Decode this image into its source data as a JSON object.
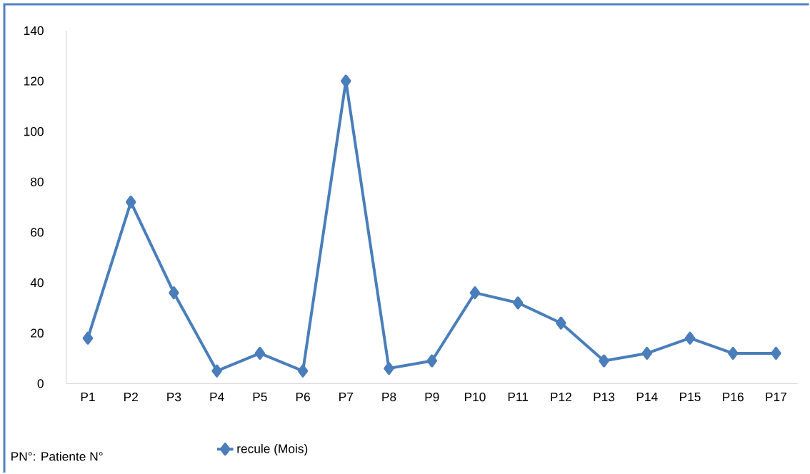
{
  "chart_data": {
    "type": "line",
    "categories": [
      "P1",
      "P2",
      "P3",
      "P4",
      "P5",
      "P6",
      "P7",
      "P8",
      "P9",
      "P10",
      "P11",
      "P12",
      "P13",
      "P14",
      "P15",
      "P16",
      "P17"
    ],
    "series": [
      {
        "name": "recule (Mois)",
        "color": "#4a7ebb",
        "values": [
          18,
          72,
          36,
          5,
          12,
          5,
          120,
          6,
          9,
          36,
          32,
          24,
          9,
          12,
          18,
          12,
          12
        ]
      }
    ],
    "ylim": [
      0,
      140
    ],
    "yticks": [
      0,
      20,
      40,
      60,
      80,
      100,
      120,
      140
    ],
    "marker": "diamond",
    "line_style": "solid",
    "grid": false,
    "legend": "bottom",
    "annotations": [
      "PN°: Patiente N°"
    ]
  }
}
